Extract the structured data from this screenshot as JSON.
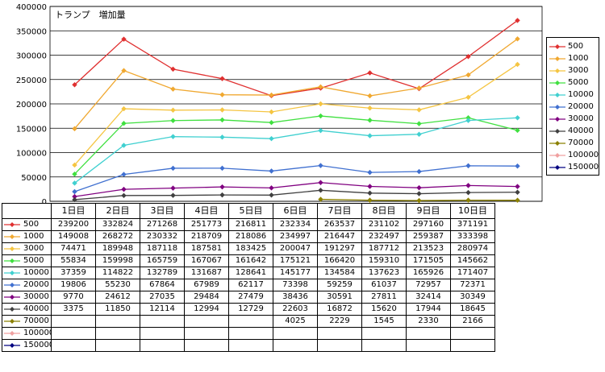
{
  "chart_data": {
    "type": "line",
    "title": "トランプ　増加量",
    "ylim": [
      0,
      400000
    ],
    "yticks": [
      0,
      50000,
      100000,
      150000,
      200000,
      250000,
      300000,
      350000,
      400000
    ],
    "categories": [
      "1日目",
      "2日目",
      "3日目",
      "4日目",
      "5日目",
      "6日目",
      "7日目",
      "8日目",
      "9日目",
      "10日目"
    ],
    "legend_position": "right",
    "gridlines": true,
    "series": [
      {
        "name": "500",
        "color": "#e03030",
        "values": [
          239200,
          332824,
          271268,
          251773,
          216811,
          232334,
          263537,
          231102,
          297160,
          371191
        ]
      },
      {
        "name": "1000",
        "color": "#f0a830",
        "values": [
          149008,
          268272,
          230332,
          218709,
          218086,
          234997,
          216447,
          232497,
          259387,
          333398
        ]
      },
      {
        "name": "3000",
        "color": "#f5c542",
        "values": [
          74471,
          189948,
          187118,
          187581,
          183425,
          200047,
          191297,
          187712,
          213523,
          280974
        ]
      },
      {
        "name": "5000",
        "color": "#40e040",
        "values": [
          55834,
          159998,
          165759,
          167067,
          161642,
          175121,
          166420,
          159310,
          171505,
          145662
        ]
      },
      {
        "name": "10000",
        "color": "#40d0d0",
        "values": [
          37359,
          114822,
          132789,
          131687,
          128641,
          145177,
          134584,
          137623,
          165926,
          171407
        ]
      },
      {
        "name": "20000",
        "color": "#4070d0",
        "values": [
          19806,
          55230,
          67864,
          67989,
          62117,
          73398,
          59259,
          61037,
          72957,
          72371
        ]
      },
      {
        "name": "30000",
        "color": "#800080",
        "values": [
          9770,
          24612,
          27035,
          29484,
          27479,
          38436,
          30591,
          27811,
          32414,
          30349
        ]
      },
      {
        "name": "40000",
        "color": "#404040",
        "values": [
          3375,
          11850,
          12114,
          12994,
          12729,
          22603,
          16872,
          15620,
          17944,
          18645
        ]
      },
      {
        "name": "70000",
        "color": "#8b8000",
        "values": [
          null,
          null,
          null,
          null,
          null,
          4025,
          2229,
          1545,
          2330,
          2166
        ]
      },
      {
        "name": "100000",
        "color": "#f0a0a0",
        "values": [
          null,
          null,
          null,
          null,
          null,
          null,
          null,
          null,
          null,
          null
        ]
      },
      {
        "name": "150000",
        "color": "#000080",
        "values": [
          null,
          null,
          null,
          null,
          null,
          null,
          null,
          null,
          null,
          null
        ]
      }
    ]
  }
}
